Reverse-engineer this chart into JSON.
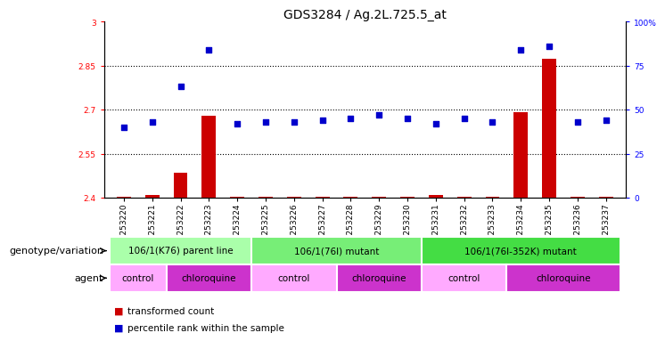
{
  "title": "GDS3284 / Ag.2L.725.5_at",
  "samples": [
    "GSM253220",
    "GSM253221",
    "GSM253222",
    "GSM253223",
    "GSM253224",
    "GSM253225",
    "GSM253226",
    "GSM253227",
    "GSM253228",
    "GSM253229",
    "GSM253230",
    "GSM253231",
    "GSM253232",
    "GSM253233",
    "GSM253234",
    "GSM253235",
    "GSM253237"
  ],
  "samples_full": [
    "GSM253220",
    "GSM253221",
    "GSM253222",
    "GSM253223",
    "GSM253224",
    "GSM253225",
    "GSM253226",
    "GSM253227",
    "GSM253228",
    "GSM253229",
    "GSM253230",
    "GSM253231",
    "GSM253232",
    "GSM253233",
    "GSM253234",
    "GSM253235",
    "GSM253236",
    "GSM253237"
  ],
  "transformed_count": [
    2.402,
    2.408,
    2.485,
    2.68,
    2.403,
    2.403,
    2.403,
    2.403,
    2.403,
    2.404,
    2.403,
    2.408,
    2.403,
    2.403,
    2.69,
    2.875,
    2.402,
    2.402
  ],
  "percentile_rank": [
    40,
    43,
    63,
    84,
    42,
    43,
    43,
    44,
    45,
    47,
    45,
    42,
    45,
    43,
    84,
    86,
    43,
    44
  ],
  "ylim_left": [
    2.4,
    3.0
  ],
  "ylim_right": [
    0,
    100
  ],
  "yticks_left": [
    2.4,
    2.55,
    2.7,
    2.85,
    3.0
  ],
  "yticks_right": [
    0,
    25,
    50,
    75,
    100
  ],
  "hlines": [
    2.55,
    2.7,
    2.85
  ],
  "bar_color": "#cc0000",
  "dot_color": "#0000cc",
  "bar_bottom": 2.4,
  "genotype_groups": [
    {
      "label": "106/1(K76) parent line",
      "start": 0,
      "end": 5,
      "color": "#aaffaa"
    },
    {
      "label": "106/1(76I) mutant",
      "start": 5,
      "end": 11,
      "color": "#77ee77"
    },
    {
      "label": "106/1(76I-352K) mutant",
      "start": 11,
      "end": 18,
      "color": "#44dd44"
    }
  ],
  "agent_groups": [
    {
      "label": "control",
      "start": 0,
      "end": 2,
      "color": "#ffaaff"
    },
    {
      "label": "chloroquine",
      "start": 2,
      "end": 5,
      "color": "#dd44dd"
    },
    {
      "label": "control",
      "start": 5,
      "end": 8,
      "color": "#ffaaff"
    },
    {
      "label": "chloroquine",
      "start": 8,
      "end": 11,
      "color": "#dd44dd"
    },
    {
      "label": "control",
      "start": 11,
      "end": 14,
      "color": "#ffaaff"
    },
    {
      "label": "chloroquine",
      "start": 14,
      "end": 18,
      "color": "#dd44dd"
    }
  ],
  "title_fontsize": 10,
  "tick_fontsize": 6.5,
  "row_label_fontsize": 8,
  "cell_fontsize": 7.5
}
